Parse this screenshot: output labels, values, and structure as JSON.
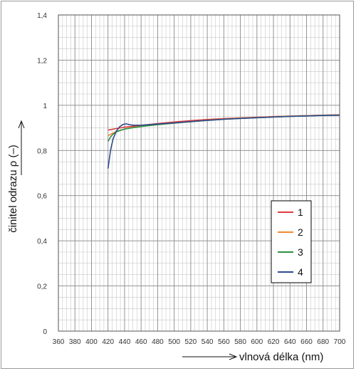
{
  "chart_data": {
    "type": "line",
    "xlabel": "vlnová délka (nm)",
    "ylabel": "činitel odrazu ρ (–)",
    "xlim": [
      360,
      700
    ],
    "ylim": [
      0,
      1.4
    ],
    "x_ticks": [
      "360",
      "380",
      "400",
      "420",
      "440",
      "460",
      "480",
      "500",
      "520",
      "540",
      "560",
      "580",
      "600",
      "620",
      "640",
      "660",
      "680",
      "700"
    ],
    "y_ticks": [
      "0",
      "0,2",
      "0,4",
      "0,6",
      "0,8",
      "1",
      "1,2",
      "1,4"
    ],
    "grid": true,
    "legend_position": "right",
    "series": [
      {
        "name": "1",
        "color": "#e0393c",
        "x": [
          420,
          430,
          440,
          450,
          460,
          480,
          500,
          520,
          540,
          560,
          580,
          600,
          620,
          640,
          660,
          680,
          700
        ],
        "y": [
          0.89,
          0.897,
          0.903,
          0.907,
          0.911,
          0.919,
          0.926,
          0.932,
          0.937,
          0.941,
          0.944,
          0.947,
          0.95,
          0.952,
          0.954,
          0.956,
          0.958
        ]
      },
      {
        "name": "2",
        "color": "#f08a30",
        "x": [
          420,
          425,
          430,
          440,
          450,
          460,
          480,
          500,
          520,
          540,
          560,
          580,
          600,
          620,
          640,
          660,
          680,
          700
        ],
        "y": [
          0.865,
          0.875,
          0.884,
          0.895,
          0.902,
          0.907,
          0.915,
          0.922,
          0.928,
          0.934,
          0.939,
          0.943,
          0.946,
          0.949,
          0.952,
          0.954,
          0.956,
          0.957
        ]
      },
      {
        "name": "3",
        "color": "#2f8f45",
        "x": [
          420,
          423,
          426,
          430,
          435,
          440,
          450,
          460,
          480,
          500,
          520,
          540,
          560,
          580,
          600,
          620,
          640,
          660,
          680,
          700
        ],
        "y": [
          0.84,
          0.86,
          0.872,
          0.882,
          0.889,
          0.895,
          0.901,
          0.906,
          0.914,
          0.921,
          0.927,
          0.933,
          0.938,
          0.942,
          0.945,
          0.948,
          0.951,
          0.953,
          0.955,
          0.956
        ]
      },
      {
        "name": "4",
        "color": "#2e4a8c",
        "x": [
          420,
          423,
          426,
          430,
          434,
          438,
          442,
          446,
          450,
          460,
          480,
          500,
          520,
          540,
          560,
          580,
          600,
          620,
          640,
          660,
          680,
          700
        ],
        "y": [
          0.72,
          0.8,
          0.85,
          0.885,
          0.905,
          0.915,
          0.918,
          0.914,
          0.912,
          0.912,
          0.917,
          0.922,
          0.928,
          0.933,
          0.938,
          0.942,
          0.945,
          0.948,
          0.951,
          0.953,
          0.955,
          0.956
        ]
      }
    ]
  }
}
